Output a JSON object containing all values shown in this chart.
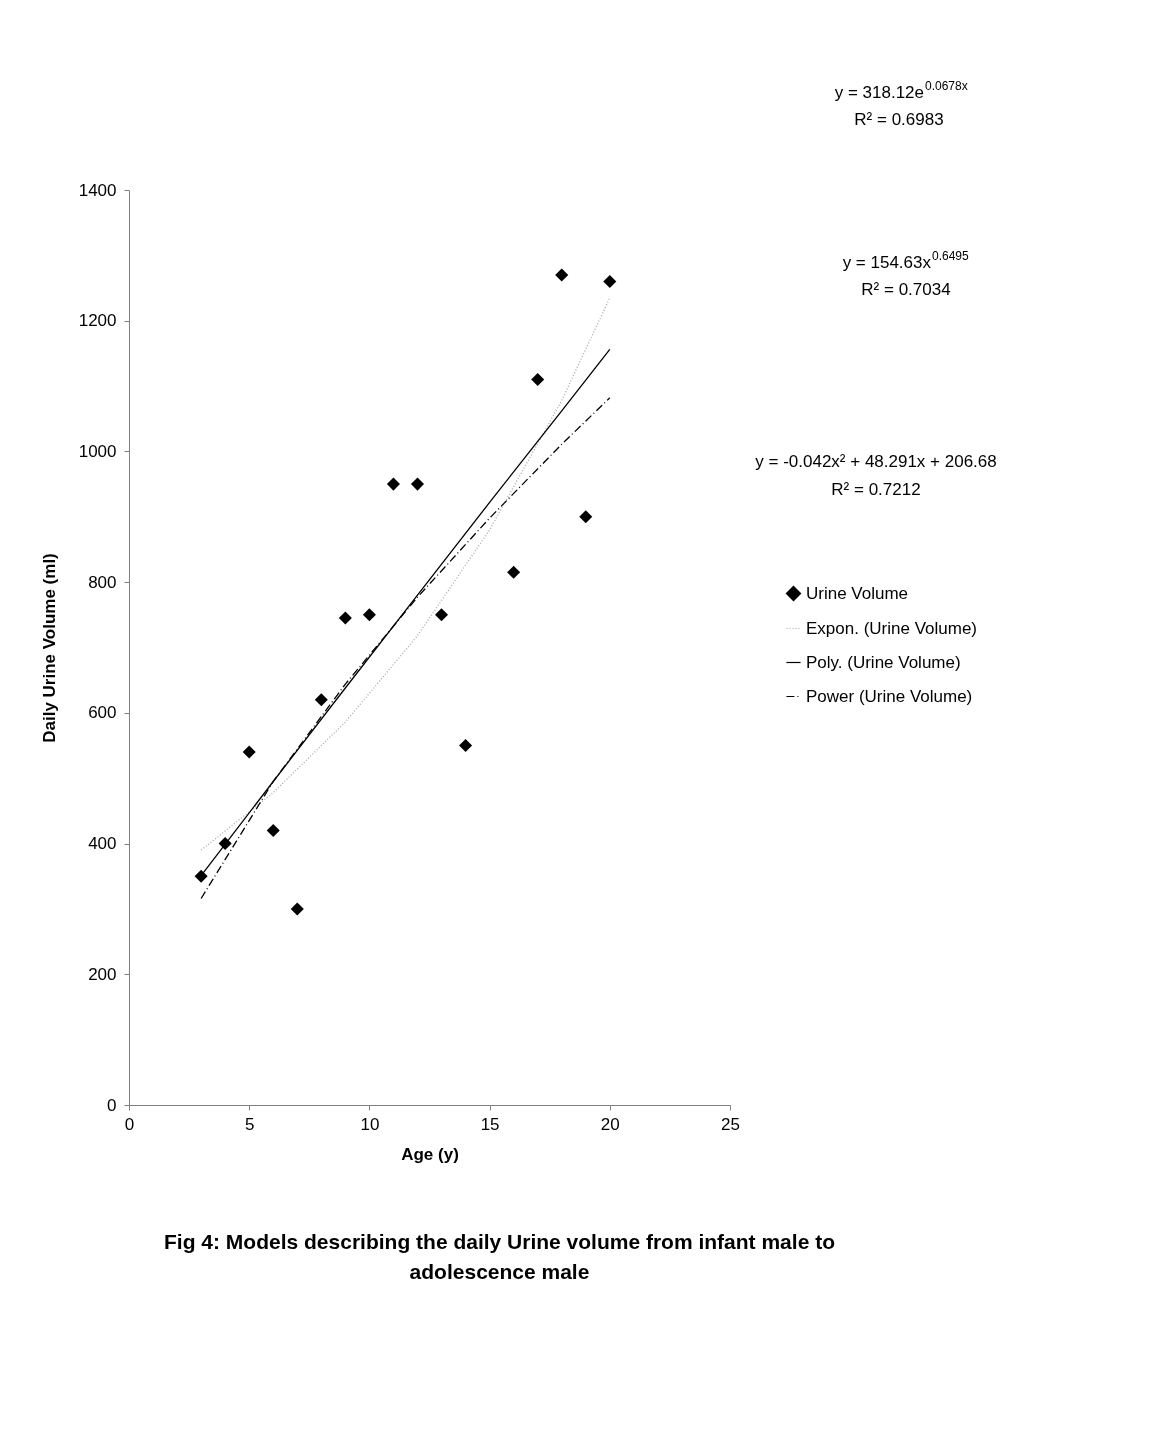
{
  "chart_data": {
    "type": "scatter",
    "title": "Fig 4: Models describing the daily Urine volume from infant male to adolescence male",
    "xlabel": "Age (y)",
    "ylabel": "Daily Urine Volume (ml)",
    "xlim": [
      0,
      25
    ],
    "xticks": [
      0,
      5,
      10,
      15,
      20,
      25
    ],
    "ylim": [
      0,
      1400
    ],
    "yticks": [
      0,
      200,
      400,
      600,
      800,
      1000,
      1200,
      1400
    ],
    "grid": false,
    "legend": "right",
    "annotations": [
      "y = 318.12e$^{0.0678x}$",
      "R² = 0.6983",
      "y = 154.63x$^{0.6495}$",
      "R² = 0.7034",
      "y = -0.042x² + 48.291x + 206.68",
      "R² = 0.7212"
    ],
    "series": [
      {
        "name": "Urine Volume",
        "type": "scatter",
        "marker": "diamond",
        "color": "#000000",
        "x": [
          3,
          4,
          5,
          6,
          7,
          8,
          9,
          10,
          11,
          12,
          13,
          14,
          16,
          17,
          18,
          19,
          20
        ],
        "values": [
          350,
          400,
          540,
          420,
          300,
          620,
          745,
          750,
          950,
          950,
          750,
          550,
          815,
          1110,
          1270,
          900,
          1260
        ]
      },
      {
        "name": "Expon. (Urine Volume)",
        "type": "line",
        "line_style": "dotted",
        "color": "#a6a6a6",
        "x": [
          3,
          6,
          9,
          12,
          15,
          18,
          20
        ],
        "values": [
          390,
          478,
          586,
          718,
          880,
          1078,
          1235
        ]
      },
      {
        "name": "Poly. (Urine Volume)",
        "type": "line",
        "line_style": "solid",
        "color": "#000000",
        "x": [
          3,
          6,
          9,
          12,
          15,
          18,
          20
        ],
        "values": [
          351,
          495,
          638,
          780,
          922,
          1062,
          1156
        ]
      },
      {
        "name": "Power (Urine Volume)",
        "type": "line",
        "line_style": "dashdot",
        "color": "#000000",
        "x": [
          3,
          6,
          9,
          12,
          15,
          18,
          20
        ],
        "values": [
          316,
          495,
          644,
          777,
          898,
          1011,
          1082
        ]
      }
    ]
  }
}
